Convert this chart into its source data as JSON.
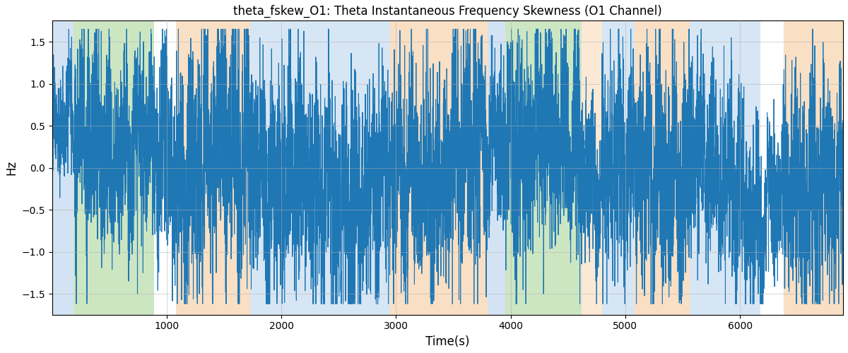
{
  "title": "theta_fskew_O1: Theta Instantaneous Frequency Skewness (O1 Channel)",
  "xlabel": "Time(s)",
  "ylabel": "Hz",
  "ylim": [
    -1.75,
    1.75
  ],
  "xlim": [
    0,
    6900
  ],
  "line_color": "#1f77b4",
  "line_width": 0.8,
  "grid_color": "#b0b0b0",
  "bands": [
    {
      "start": 0,
      "end": 185,
      "color": "#a8c8e8",
      "alpha": 0.5
    },
    {
      "start": 185,
      "end": 890,
      "color": "#90c978",
      "alpha": 0.45
    },
    {
      "start": 1080,
      "end": 1730,
      "color": "#f5c08a",
      "alpha": 0.5
    },
    {
      "start": 1730,
      "end": 2950,
      "color": "#a8c8e8",
      "alpha": 0.45
    },
    {
      "start": 2950,
      "end": 3800,
      "color": "#f5c08a",
      "alpha": 0.5
    },
    {
      "start": 3800,
      "end": 3950,
      "color": "#a8c8e8",
      "alpha": 0.5
    },
    {
      "start": 3950,
      "end": 4620,
      "color": "#90c978",
      "alpha": 0.45
    },
    {
      "start": 4620,
      "end": 4800,
      "color": "#f5c08a",
      "alpha": 0.35
    },
    {
      "start": 4800,
      "end": 5080,
      "color": "#a8c8e8",
      "alpha": 0.45
    },
    {
      "start": 5080,
      "end": 5560,
      "color": "#f5c08a",
      "alpha": 0.5
    },
    {
      "start": 5560,
      "end": 6180,
      "color": "#a8c8e8",
      "alpha": 0.45
    },
    {
      "start": 6380,
      "end": 6900,
      "color": "#f5c08a",
      "alpha": 0.5
    }
  ],
  "seed": 2024,
  "n_points": 6800,
  "x_end": 6900,
  "figsize": [
    12.0,
    5.0
  ],
  "dpi": 100
}
